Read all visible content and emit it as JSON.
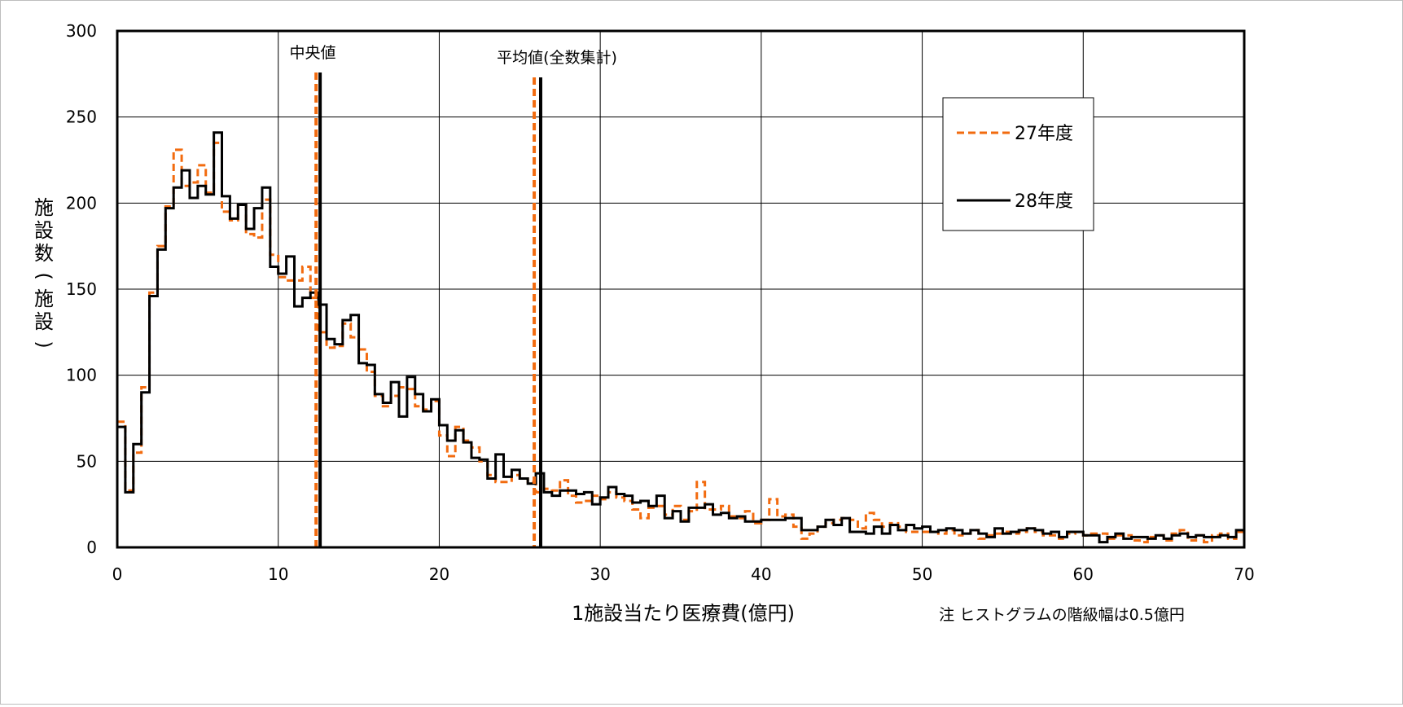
{
  "chart_data": {
    "type": "line",
    "step": true,
    "bin_width": 0.5,
    "xlabel": "1施設当たり医療費(億円)",
    "ylabel": "施設数(施設)",
    "note": "注 ヒストグラムの階級幅は0.5億円",
    "xlim": [
      0,
      70
    ],
    "ylim": [
      0,
      300
    ],
    "xticks": [
      "0",
      "10",
      "20",
      "30",
      "40",
      "50",
      "60",
      "70"
    ],
    "yticks": [
      "0",
      "50",
      "100",
      "150",
      "200",
      "250",
      "300"
    ],
    "grid": true,
    "legend_position": "top-right",
    "x_bin_start": [
      0,
      0.5,
      1,
      1.5,
      2,
      2.5,
      3,
      3.5,
      4,
      4.5,
      5,
      5.5,
      6,
      6.5,
      7,
      7.5,
      8,
      8.5,
      9,
      9.5,
      10,
      10.5,
      11,
      11.5,
      12,
      12.5,
      13,
      13.5,
      14,
      14.5,
      15,
      15.5,
      16,
      16.5,
      17,
      17.5,
      18,
      18.5,
      19,
      19.5,
      20,
      20.5,
      21,
      21.5,
      22,
      22.5,
      23,
      23.5,
      24,
      24.5,
      25,
      25.5,
      26,
      26.5,
      27,
      27.5,
      28,
      28.5,
      29,
      29.5,
      30,
      30.5,
      31,
      31.5,
      32,
      32.5,
      33,
      33.5,
      34,
      34.5,
      35,
      35.5,
      36,
      36.5,
      37,
      37.5,
      38,
      38.5,
      39,
      39.5,
      40,
      40.5,
      41,
      41.5,
      42,
      42.5,
      43,
      43.5,
      44,
      44.5,
      45,
      45.5,
      46,
      46.5,
      47,
      47.5,
      48,
      48.5,
      49,
      49.5,
      50,
      50.5,
      51,
      51.5,
      52,
      52.5,
      53,
      53.5,
      54,
      54.5,
      55,
      55.5,
      56,
      56.5,
      57,
      57.5,
      58,
      58.5,
      59,
      59.5,
      60,
      60.5,
      61,
      61.5,
      62,
      62.5,
      63,
      63.5,
      64,
      64.5,
      65,
      65.5,
      66,
      66.5,
      67,
      67.5,
      68,
      68.5,
      69,
      69.5
    ],
    "series": [
      {
        "name": "27年度",
        "color": "#f26b0f",
        "dash": true,
        "values": [
          73,
          33,
          55,
          93,
          148,
          175,
          198,
          231,
          210,
          212,
          222,
          206,
          235,
          195,
          190,
          199,
          182,
          180,
          202,
          170,
          157,
          155,
          155,
          163,
          145,
          125,
          116,
          117,
          130,
          122,
          115,
          102,
          88,
          82,
          88,
          93,
          92,
          82,
          80,
          85,
          65,
          53,
          70,
          62,
          58,
          50,
          42,
          38,
          38,
          42,
          40,
          38,
          32,
          34,
          33,
          39,
          30,
          26,
          27,
          30,
          28,
          32,
          29,
          27,
          22,
          17,
          23,
          24,
          19,
          24,
          16,
          21,
          38,
          22,
          22,
          24,
          18,
          17,
          21,
          14,
          16,
          28,
          18,
          19,
          12,
          5,
          8,
          12,
          14,
          16,
          17,
          16,
          11,
          20,
          16,
          12,
          14,
          12,
          9,
          9,
          9,
          9,
          8,
          10,
          7,
          8,
          10,
          5,
          7,
          8,
          9,
          8,
          9,
          11,
          9,
          7,
          7,
          5,
          8,
          9,
          7,
          8,
          8,
          5,
          7,
          7,
          4,
          3,
          6,
          7,
          4,
          8,
          10,
          4,
          7,
          3,
          7,
          8,
          5,
          9
        ]
      },
      {
        "name": "28年度",
        "color": "#000000",
        "dash": false,
        "values": [
          70,
          32,
          60,
          90,
          146,
          173,
          197,
          209,
          219,
          203,
          210,
          205,
          241,
          204,
          191,
          199,
          185,
          197,
          209,
          163,
          159,
          169,
          140,
          145,
          148,
          141,
          121,
          118,
          132,
          135,
          107,
          106,
          89,
          84,
          96,
          76,
          99,
          89,
          79,
          86,
          71,
          62,
          68,
          61,
          52,
          51,
          40,
          54,
          41,
          45,
          40,
          37,
          43,
          32,
          30,
          33,
          33,
          31,
          32,
          25,
          29,
          35,
          31,
          30,
          26,
          27,
          24,
          30,
          17,
          21,
          15,
          23,
          23,
          25,
          19,
          20,
          17,
          18,
          15,
          15,
          16,
          16,
          16,
          17,
          17,
          10,
          10,
          12,
          16,
          13,
          17,
          9,
          9,
          8,
          12,
          8,
          13,
          10,
          13,
          11,
          12,
          9,
          10,
          11,
          10,
          8,
          10,
          8,
          6,
          11,
          8,
          9,
          10,
          11,
          10,
          8,
          9,
          6,
          9,
          9,
          7,
          7,
          3,
          6,
          8,
          5,
          6,
          6,
          5,
          7,
          5,
          7,
          8,
          6,
          7,
          6,
          6,
          7,
          6,
          10
        ]
      }
    ],
    "vlines": [
      {
        "label": "中央値",
        "series": "27年度",
        "x": 12.35
      },
      {
        "label": "中央値",
        "series": "28年度",
        "x": 12.6
      },
      {
        "label": "平均値(全数集計)",
        "series": "27年度",
        "x": 25.9
      },
      {
        "label": "平均値(全数集計)",
        "series": "28年度",
        "x": 26.3
      }
    ],
    "vline_labels": {
      "median": "中央値",
      "mean": "平均値(全数集計)"
    }
  }
}
